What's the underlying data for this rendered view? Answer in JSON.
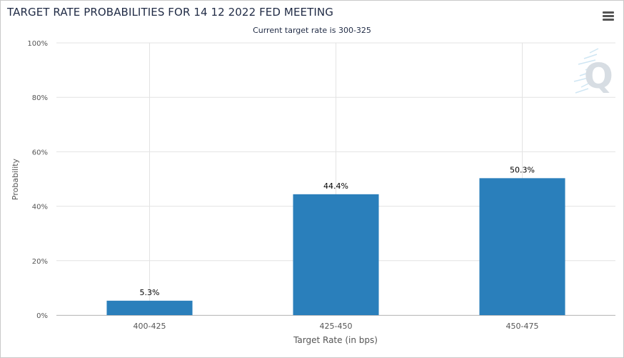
{
  "header": {
    "title": "TARGET RATE PROBABILITIES FOR 14 12 2022 FED MEETING",
    "subtitle": "Current target rate is 300-325"
  },
  "toolbar": {
    "menu_icon": "hamburger-menu-icon"
  },
  "watermark": {
    "icon": "cme-fedwatch-q-logo-icon",
    "letter": "Q"
  },
  "colors": {
    "bar": "#2a7fbb",
    "grid": "#e3e3e3",
    "axis_text": "#555555",
    "title_text": "#1f2a44"
  },
  "chart_data": {
    "type": "bar",
    "categories": [
      "400-425",
      "425-450",
      "450-475"
    ],
    "values": [
      5.3,
      44.4,
      50.3
    ],
    "data_labels": [
      "5.3%",
      "44.4%",
      "50.3%"
    ],
    "xlabel": "Target Rate (in bps)",
    "ylabel": "Probability",
    "ylim": [
      0,
      100
    ],
    "yticks": [
      0,
      20,
      40,
      60,
      80,
      100
    ],
    "ytick_labels": [
      "0%",
      "20%",
      "40%",
      "60%",
      "80%",
      "100%"
    ],
    "grid": true,
    "legend": false
  }
}
